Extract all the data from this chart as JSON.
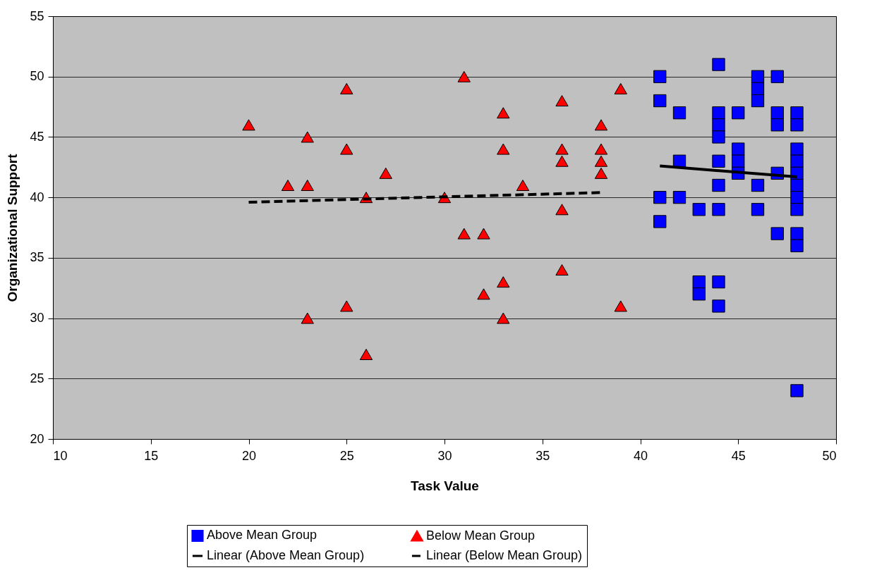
{
  "chart_data": {
    "type": "scatter",
    "xlabel": "Task Value",
    "ylabel": "Organizational Support",
    "xlim": [
      10,
      50
    ],
    "xticks": [
      10,
      15,
      20,
      25,
      30,
      35,
      40,
      45,
      50
    ],
    "ylim": [
      20,
      55
    ],
    "yticks": [
      20,
      25,
      30,
      35,
      40,
      45,
      50,
      55
    ],
    "grid": "y",
    "legend": "bottom",
    "series": [
      {
        "name": "Above Mean Group",
        "marker": "square",
        "color": "#0000ff",
        "x": [
          41,
          41,
          41,
          41,
          42,
          42,
          42,
          43,
          43,
          43,
          44,
          44,
          44,
          44,
          44,
          44,
          44,
          44,
          44,
          45,
          45,
          45,
          45,
          46,
          46,
          46,
          46,
          46,
          47,
          47,
          47,
          47,
          47,
          48,
          48,
          48,
          48,
          48,
          48,
          48,
          48,
          48,
          48,
          48
        ],
        "values": [
          50,
          48,
          40,
          38,
          47,
          43,
          40,
          39,
          33,
          32,
          51,
          47,
          46,
          45,
          43,
          41,
          39,
          33,
          31,
          47,
          44,
          43,
          42,
          50,
          49,
          48,
          41,
          39,
          50,
          47,
          46,
          42,
          37,
          47,
          46,
          44,
          43,
          42,
          41,
          40,
          39,
          37,
          36,
          24
        ]
      },
      {
        "name": "Below Mean Group",
        "marker": "triangle",
        "color": "#ff0000",
        "x": [
          20,
          22,
          23,
          23,
          23,
          25,
          25,
          25,
          26,
          26,
          27,
          30,
          31,
          31,
          32,
          32,
          33,
          33,
          33,
          33,
          34,
          36,
          36,
          36,
          36,
          36,
          38,
          38,
          38,
          38,
          39,
          39
        ],
        "values": [
          46,
          41,
          45,
          41,
          30,
          49,
          44,
          31,
          40,
          27,
          42,
          40,
          50,
          37,
          37,
          32,
          47,
          44,
          33,
          30,
          41,
          48,
          44,
          43,
          39,
          34,
          46,
          44,
          43,
          42,
          49,
          31
        ]
      },
      {
        "name": "Linear (Above Mean Group)",
        "type": "line",
        "line_style": "solid",
        "color": "#000000",
        "x": [
          41,
          48
        ],
        "values": [
          42.6,
          41.7
        ]
      },
      {
        "name": "Linear (Below Mean Group)",
        "type": "line",
        "line_style": "dashed",
        "color": "#000000",
        "x": [
          20,
          38
        ],
        "values": [
          39.6,
          40.4
        ]
      }
    ]
  }
}
